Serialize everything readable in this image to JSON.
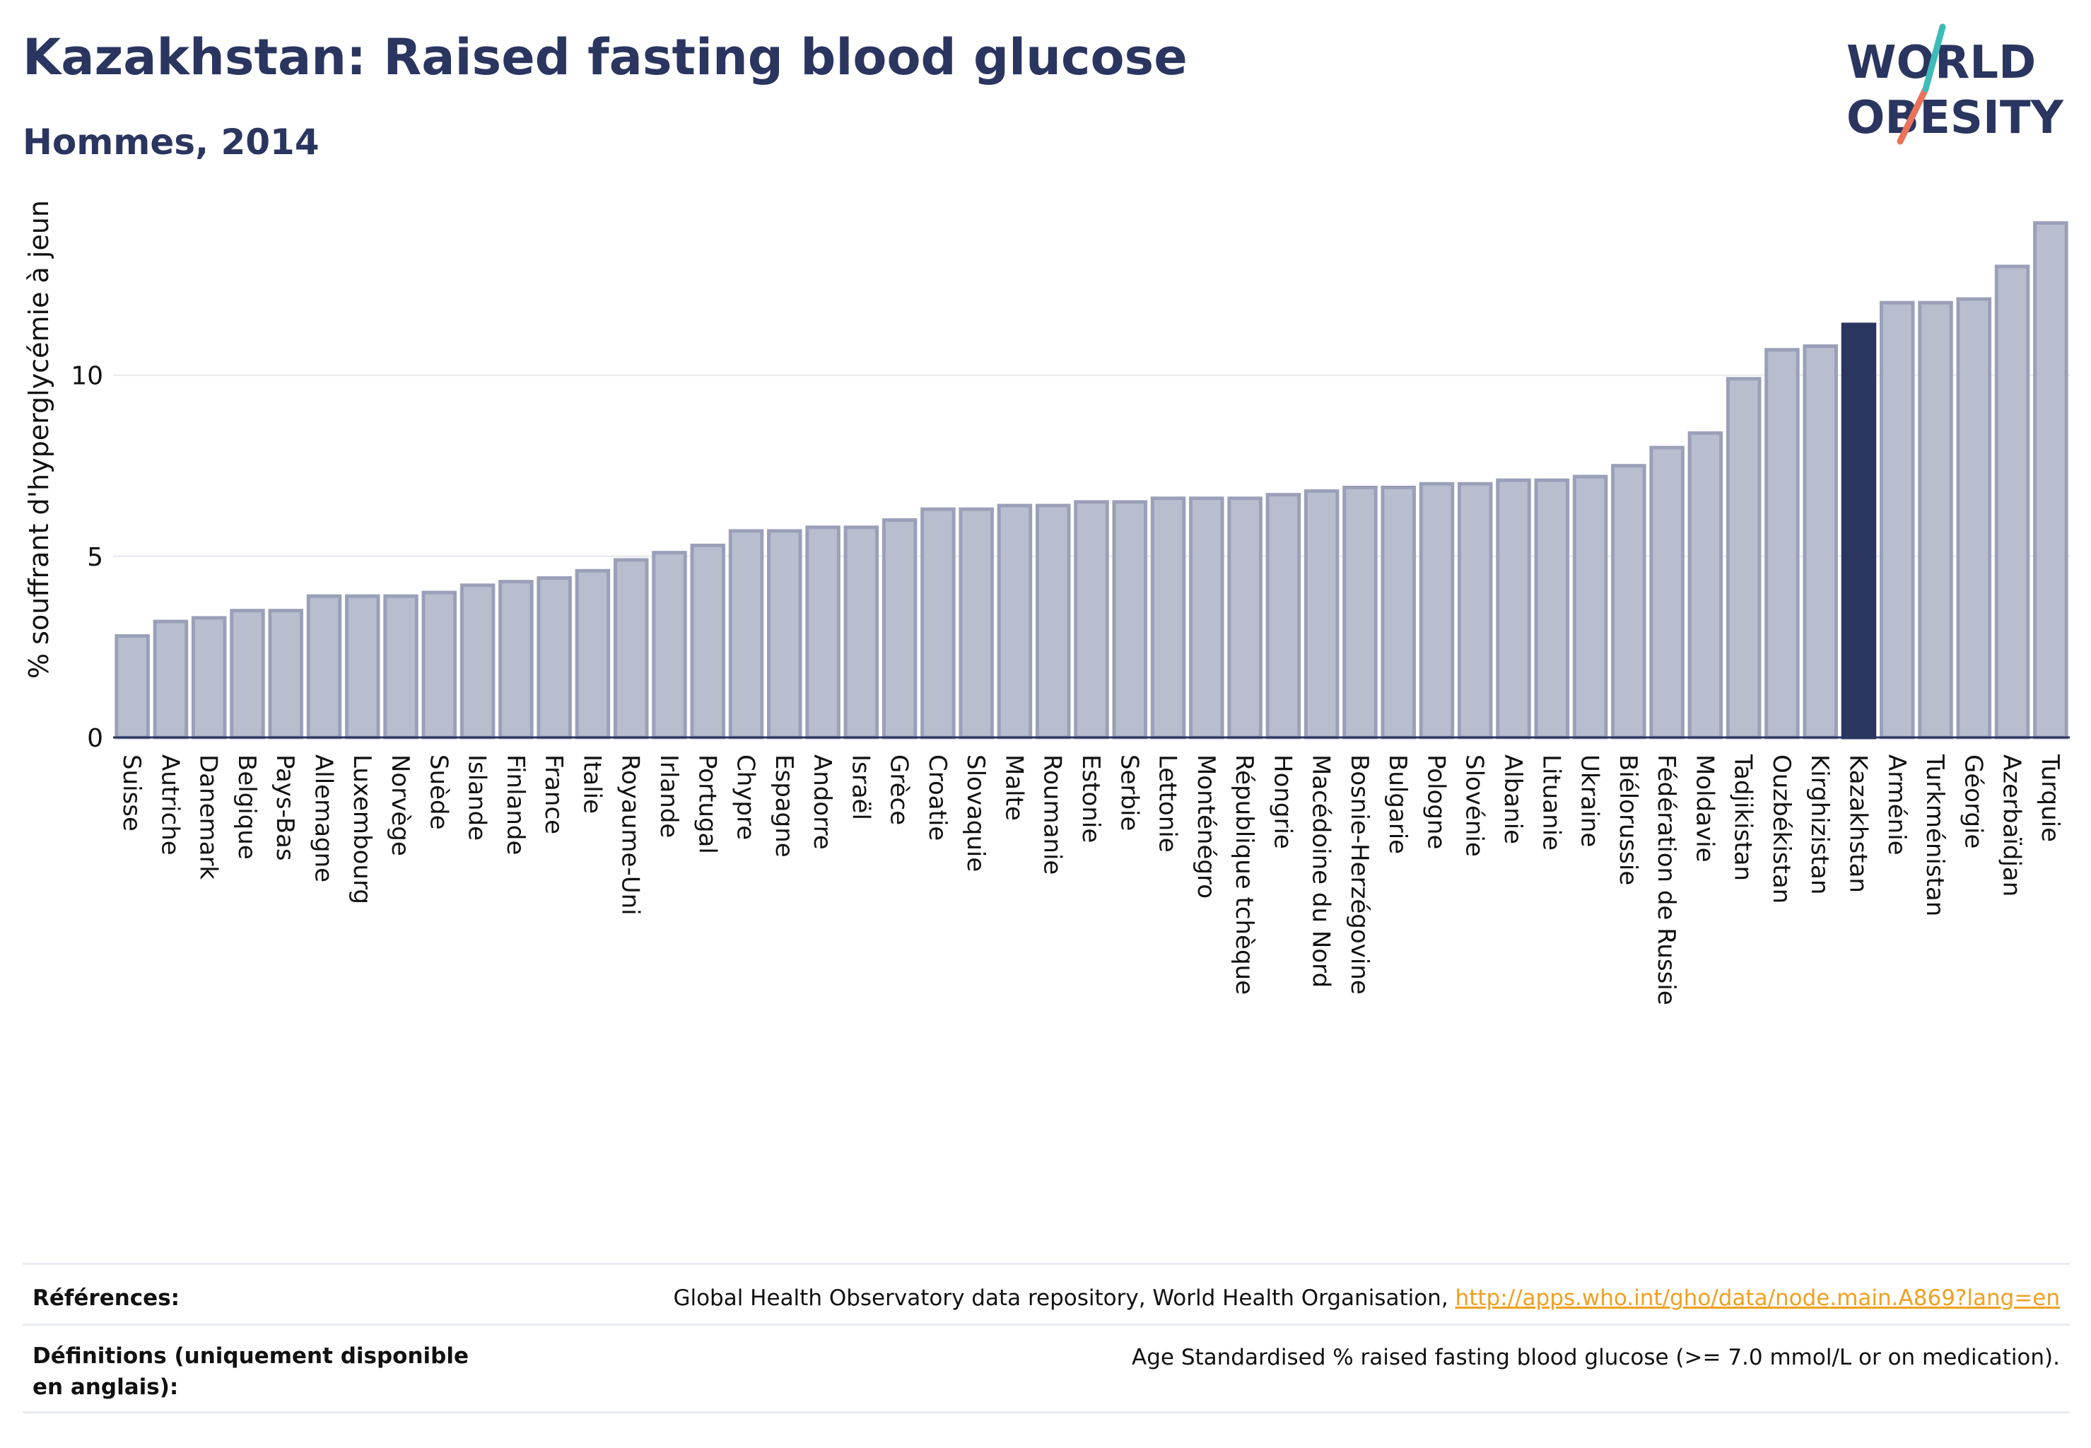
{
  "header": {
    "title": "Kazakhstan: Raised fasting blood glucose",
    "subtitle": "Hommes, 2014"
  },
  "logo": {
    "line1": "WORLD",
    "line2": "OBESITY"
  },
  "colors": {
    "highlight": "#2a3560",
    "bar_fill": "#b9becf",
    "bar_stroke": "#9aa0b8",
    "grid": "#e6e8ef",
    "logo_teal": "#3dbcb8",
    "logo_coral": "#e8735a",
    "link": "#f0a020"
  },
  "chart_data": {
    "type": "bar",
    "ylabel": "% souffrant d'hyperglycémie à jeun",
    "yticks": [
      0,
      5,
      10
    ],
    "ylim": [
      0,
      14.5
    ],
    "highlight": "Kazakhstan",
    "categories": [
      "Suisse",
      "Autriche",
      "Danemark",
      "Belgique",
      "Pays-Bas",
      "Allemagne",
      "Luxembourg",
      "Norvège",
      "Suède",
      "Islande",
      "Finlande",
      "France",
      "Italie",
      "Royaume-Uni",
      "Irlande",
      "Portugal",
      "Chypre",
      "Espagne",
      "Andorre",
      "Israël",
      "Grèce",
      "Croatie",
      "Slovaquie",
      "Malte",
      "Roumanie",
      "Estonie",
      "Serbie",
      "Lettonie",
      "Monténégro",
      "République tchèque",
      "Hongrie",
      "Macédoine du Nord",
      "Bosnie-Herzégovine",
      "Bulgarie",
      "Pologne",
      "Slovénie",
      "Albanie",
      "Lituanie",
      "Ukraine",
      "Biélorussie",
      "Fédération de Russie",
      "Moldavie",
      "Tadjikistan",
      "Ouzbékistan",
      "Kirghizistan",
      "Kazakhstan",
      "Arménie",
      "Turkménistan",
      "Géorgie",
      "Azerbaïdjan",
      "Turquie"
    ],
    "values": [
      2.8,
      3.2,
      3.3,
      3.5,
      3.5,
      3.9,
      3.9,
      3.9,
      4.0,
      4.2,
      4.3,
      4.4,
      4.6,
      4.9,
      5.1,
      5.3,
      5.7,
      5.7,
      5.8,
      5.8,
      6.0,
      6.3,
      6.3,
      6.4,
      6.4,
      6.5,
      6.5,
      6.6,
      6.6,
      6.6,
      6.7,
      6.8,
      6.9,
      6.9,
      7.0,
      7.0,
      7.1,
      7.1,
      7.2,
      7.5,
      8.0,
      8.4,
      9.9,
      10.7,
      10.8,
      11.4,
      12.0,
      12.0,
      12.1,
      13.0,
      14.2
    ]
  },
  "footer": {
    "references_label": "Références:",
    "references_text": "Global Health Observatory data repository, World Health Organisation, ",
    "references_link": "http://apps.who.int/gho/data/node.main.A869?lang=en",
    "definitions_label": "Définitions (uniquement disponible en anglais):",
    "definitions_text": "Age Standardised % raised fasting blood glucose (>= 7.0 mmol/L or on medication)."
  }
}
